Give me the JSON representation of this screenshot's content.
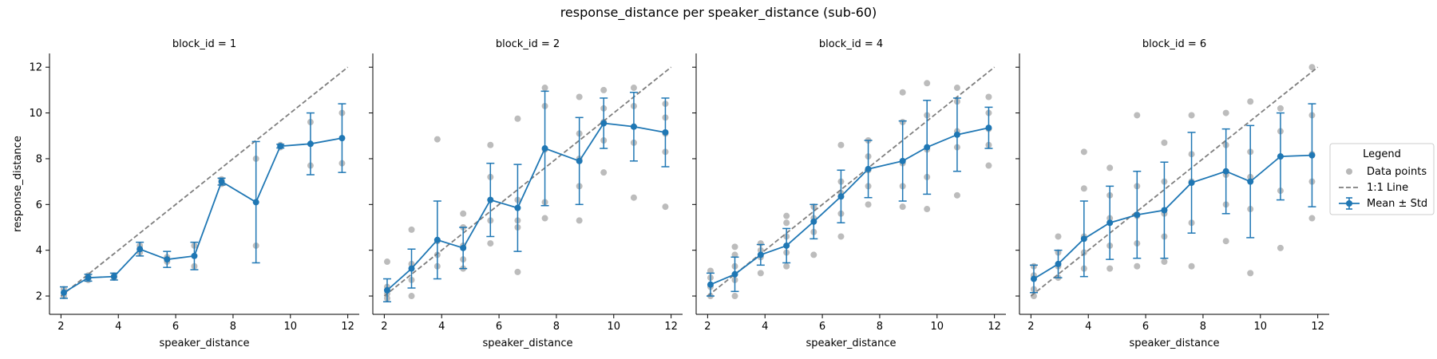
{
  "figure": {
    "title": "response_distance per speaker_distance (sub-60)"
  },
  "legend": {
    "title": "Legend",
    "entries": [
      "Data points",
      "1:1 Line",
      "Mean ± Std"
    ]
  },
  "colors": {
    "mean_line": "#1f77b4",
    "data_points": "#a0a0a0",
    "identity_line": "#7f7f7f"
  },
  "chart_data": [
    {
      "type": "scatter",
      "title": "block_id = 1",
      "xlabel": "speaker_distance",
      "ylabel": "response_distance",
      "xlim": [
        1.6,
        12.4
      ],
      "ylim": [
        1.2,
        12.6
      ],
      "xticks": [
        "2",
        "4",
        "6",
        "8",
        "10",
        "12"
      ],
      "yticks": [
        "2",
        "4",
        "6",
        "8",
        "10",
        "12"
      ],
      "identity_line": [
        [
          2,
          2
        ],
        [
          12,
          12
        ]
      ],
      "mean": {
        "x": [
          2.1,
          2.95,
          3.85,
          4.75,
          5.7,
          6.65,
          7.6,
          8.8,
          9.65,
          10.7,
          11.8
        ],
        "y": [
          2.15,
          2.8,
          2.85,
          4.05,
          3.6,
          3.75,
          7.0,
          6.1,
          8.55,
          8.65,
          8.9
        ],
        "std": [
          0.25,
          0.15,
          0.15,
          0.3,
          0.35,
          0.6,
          0.15,
          2.65,
          0.08,
          1.35,
          1.5
        ]
      },
      "points": [
        [
          2.1,
          2.0
        ],
        [
          2.1,
          2.3
        ],
        [
          2.95,
          2.7
        ],
        [
          2.95,
          2.9
        ],
        [
          3.85,
          2.8
        ],
        [
          3.85,
          2.9
        ],
        [
          4.75,
          3.9
        ],
        [
          4.75,
          4.2
        ],
        [
          5.7,
          3.5
        ],
        [
          5.7,
          3.7
        ],
        [
          6.65,
          3.3
        ],
        [
          6.65,
          4.2
        ],
        [
          7.6,
          6.9
        ],
        [
          7.6,
          7.1
        ],
        [
          8.8,
          4.2
        ],
        [
          8.8,
          8.0
        ],
        [
          9.65,
          8.5
        ],
        [
          9.65,
          8.6
        ],
        [
          10.7,
          7.7
        ],
        [
          10.7,
          9.6
        ],
        [
          11.8,
          7.8
        ],
        [
          11.8,
          10.0
        ]
      ]
    },
    {
      "type": "scatter",
      "title": "block_id = 2",
      "xlabel": "speaker_distance",
      "ylabel": "",
      "xlim": [
        1.6,
        12.4
      ],
      "ylim": [
        1.2,
        12.6
      ],
      "xticks": [
        "2",
        "4",
        "6",
        "8",
        "10",
        "12"
      ],
      "yticks": [],
      "identity_line": [
        [
          2,
          2
        ],
        [
          12,
          12
        ]
      ],
      "mean": {
        "x": [
          2.1,
          2.95,
          3.85,
          4.75,
          5.7,
          6.65,
          7.6,
          8.8,
          9.65,
          10.7,
          11.8
        ],
        "y": [
          2.25,
          3.2,
          4.45,
          4.1,
          6.2,
          5.85,
          8.45,
          7.9,
          9.55,
          9.4,
          9.15
        ],
        "std": [
          0.5,
          0.85,
          1.7,
          0.9,
          1.6,
          1.9,
          2.5,
          1.9,
          1.1,
          1.5,
          1.5
        ]
      },
      "points": [
        [
          2.1,
          1.9
        ],
        [
          2.1,
          2.1
        ],
        [
          2.1,
          2.4
        ],
        [
          2.1,
          3.5
        ],
        [
          2.95,
          2.0
        ],
        [
          2.95,
          2.7
        ],
        [
          2.95,
          3.4
        ],
        [
          2.95,
          4.9
        ],
        [
          3.85,
          3.3
        ],
        [
          3.85,
          3.8
        ],
        [
          3.85,
          4.4
        ],
        [
          3.85,
          8.85
        ],
        [
          4.75,
          3.2
        ],
        [
          4.75,
          3.6
        ],
        [
          4.75,
          4.2
        ],
        [
          4.75,
          5.0
        ],
        [
          4.75,
          5.6
        ],
        [
          5.7,
          4.3
        ],
        [
          5.7,
          5.3
        ],
        [
          5.7,
          6.2
        ],
        [
          5.7,
          7.2
        ],
        [
          5.7,
          8.6
        ],
        [
          6.65,
          3.05
        ],
        [
          6.65,
          5.0
        ],
        [
          6.65,
          5.3
        ],
        [
          6.65,
          6.2
        ],
        [
          6.65,
          9.75
        ],
        [
          7.6,
          5.4
        ],
        [
          7.6,
          6.1
        ],
        [
          7.6,
          8.4
        ],
        [
          7.6,
          10.3
        ],
        [
          7.6,
          11.1
        ],
        [
          8.8,
          5.3
        ],
        [
          8.8,
          6.8
        ],
        [
          8.8,
          8.0
        ],
        [
          8.8,
          9.1
        ],
        [
          8.8,
          10.7
        ],
        [
          9.65,
          7.4
        ],
        [
          9.65,
          8.8
        ],
        [
          9.65,
          9.6
        ],
        [
          9.65,
          10.2
        ],
        [
          9.65,
          11.0
        ],
        [
          10.7,
          6.3
        ],
        [
          10.7,
          8.7
        ],
        [
          10.7,
          9.4
        ],
        [
          10.7,
          10.3
        ],
        [
          10.7,
          11.1
        ],
        [
          11.8,
          5.9
        ],
        [
          11.8,
          8.3
        ],
        [
          11.8,
          9.1
        ],
        [
          11.8,
          9.8
        ],
        [
          11.8,
          10.4
        ]
      ]
    },
    {
      "type": "scatter",
      "title": "block_id = 4",
      "xlabel": "speaker_distance",
      "ylabel": "",
      "xlim": [
        1.6,
        12.4
      ],
      "ylim": [
        1.2,
        12.6
      ],
      "xticks": [
        "2",
        "4",
        "6",
        "8",
        "10",
        "12"
      ],
      "yticks": [],
      "identity_line": [
        [
          2,
          2
        ],
        [
          12,
          12
        ]
      ],
      "mean": {
        "x": [
          2.1,
          2.95,
          3.85,
          4.75,
          5.7,
          6.65,
          7.6,
          8.8,
          9.65,
          10.7,
          11.8
        ],
        "y": [
          2.5,
          2.95,
          3.8,
          4.2,
          5.25,
          6.35,
          7.55,
          7.9,
          8.5,
          9.05,
          9.35
        ],
        "std": [
          0.5,
          0.75,
          0.45,
          0.75,
          0.75,
          1.15,
          1.25,
          1.75,
          2.05,
          1.6,
          0.9
        ]
      },
      "points": [
        [
          2.1,
          2.0
        ],
        [
          2.1,
          2.4
        ],
        [
          2.1,
          2.8
        ],
        [
          2.1,
          3.1
        ],
        [
          2.95,
          2.0
        ],
        [
          2.95,
          2.7
        ],
        [
          2.95,
          3.3
        ],
        [
          2.95,
          3.8
        ],
        [
          2.95,
          4.15
        ],
        [
          3.85,
          3.0
        ],
        [
          3.85,
          3.7
        ],
        [
          3.85,
          4.0
        ],
        [
          3.85,
          4.3
        ],
        [
          4.75,
          3.3
        ],
        [
          4.75,
          3.9
        ],
        [
          4.75,
          4.6
        ],
        [
          4.75,
          5.2
        ],
        [
          4.75,
          5.5
        ],
        [
          5.7,
          3.8
        ],
        [
          5.7,
          4.8
        ],
        [
          5.7,
          5.4
        ],
        [
          5.7,
          5.9
        ],
        [
          6.65,
          4.6
        ],
        [
          6.65,
          5.6
        ],
        [
          6.65,
          6.5
        ],
        [
          6.65,
          7.0
        ],
        [
          6.65,
          8.6
        ],
        [
          7.6,
          6.0
        ],
        [
          7.6,
          6.8
        ],
        [
          7.6,
          7.5
        ],
        [
          7.6,
          8.1
        ],
        [
          7.6,
          8.8
        ],
        [
          8.8,
          5.9
        ],
        [
          8.8,
          6.8
        ],
        [
          8.8,
          7.8
        ],
        [
          8.8,
          9.6
        ],
        [
          8.8,
          10.9
        ],
        [
          9.65,
          5.8
        ],
        [
          9.65,
          7.2
        ],
        [
          9.65,
          8.4
        ],
        [
          9.65,
          9.9
        ],
        [
          9.65,
          11.3
        ],
        [
          10.7,
          6.4
        ],
        [
          10.7,
          8.5
        ],
        [
          10.7,
          9.2
        ],
        [
          10.7,
          10.5
        ],
        [
          10.7,
          11.1
        ],
        [
          11.8,
          7.7
        ],
        [
          11.8,
          8.6
        ],
        [
          11.8,
          9.3
        ],
        [
          11.8,
          10.0
        ],
        [
          11.8,
          10.7
        ]
      ]
    },
    {
      "type": "scatter",
      "title": "block_id = 6",
      "xlabel": "speaker_distance",
      "ylabel": "",
      "xlim": [
        1.6,
        12.4
      ],
      "ylim": [
        1.2,
        12.6
      ],
      "xticks": [
        "2",
        "4",
        "6",
        "8",
        "10",
        "12"
      ],
      "yticks": [],
      "identity_line": [
        [
          2,
          2
        ],
        [
          12,
          12
        ]
      ],
      "mean": {
        "x": [
          2.1,
          2.95,
          3.85,
          4.75,
          5.7,
          6.65,
          7.6,
          8.8,
          9.65,
          10.7,
          11.8
        ],
        "y": [
          2.75,
          3.4,
          4.5,
          5.2,
          5.55,
          5.75,
          6.95,
          7.45,
          7.0,
          8.1,
          8.15
        ],
        "std": [
          0.6,
          0.6,
          1.65,
          1.6,
          1.9,
          2.1,
          2.2,
          1.85,
          2.45,
          1.9,
          2.25
        ]
      },
      "points": [
        [
          2.1,
          2.0
        ],
        [
          2.1,
          2.3
        ],
        [
          2.1,
          2.9
        ],
        [
          2.1,
          3.3
        ],
        [
          2.95,
          2.8
        ],
        [
          2.95,
          3.3
        ],
        [
          2.95,
          3.9
        ],
        [
          2.95,
          4.6
        ],
        [
          3.85,
          3.2
        ],
        [
          3.85,
          3.9
        ],
        [
          3.85,
          4.6
        ],
        [
          3.85,
          6.7
        ],
        [
          3.85,
          8.3
        ],
        [
          4.75,
          3.2
        ],
        [
          4.75,
          4.2
        ],
        [
          4.75,
          5.4
        ],
        [
          4.75,
          6.4
        ],
        [
          4.75,
          7.6
        ],
        [
          5.7,
          3.3
        ],
        [
          5.7,
          4.3
        ],
        [
          5.7,
          5.5
        ],
        [
          5.7,
          6.8
        ],
        [
          5.7,
          9.9
        ],
        [
          6.65,
          3.5
        ],
        [
          6.65,
          4.6
        ],
        [
          6.65,
          5.6
        ],
        [
          6.65,
          7.0
        ],
        [
          6.65,
          8.7
        ],
        [
          7.6,
          3.3
        ],
        [
          7.6,
          5.2
        ],
        [
          7.6,
          7.0
        ],
        [
          7.6,
          8.2
        ],
        [
          7.6,
          9.9
        ],
        [
          8.8,
          4.4
        ],
        [
          8.8,
          6.0
        ],
        [
          8.8,
          7.3
        ],
        [
          8.8,
          8.6
        ],
        [
          8.8,
          10.0
        ],
        [
          9.65,
          3.0
        ],
        [
          9.65,
          5.8
        ],
        [
          9.65,
          7.2
        ],
        [
          9.65,
          8.3
        ],
        [
          9.65,
          10.5
        ],
        [
          10.7,
          4.1
        ],
        [
          10.7,
          6.6
        ],
        [
          10.7,
          8.1
        ],
        [
          10.7,
          9.2
        ],
        [
          10.7,
          10.2
        ],
        [
          11.8,
          5.4
        ],
        [
          11.8,
          7.0
        ],
        [
          11.8,
          8.2
        ],
        [
          11.8,
          9.9
        ],
        [
          11.8,
          12.0
        ]
      ]
    }
  ]
}
